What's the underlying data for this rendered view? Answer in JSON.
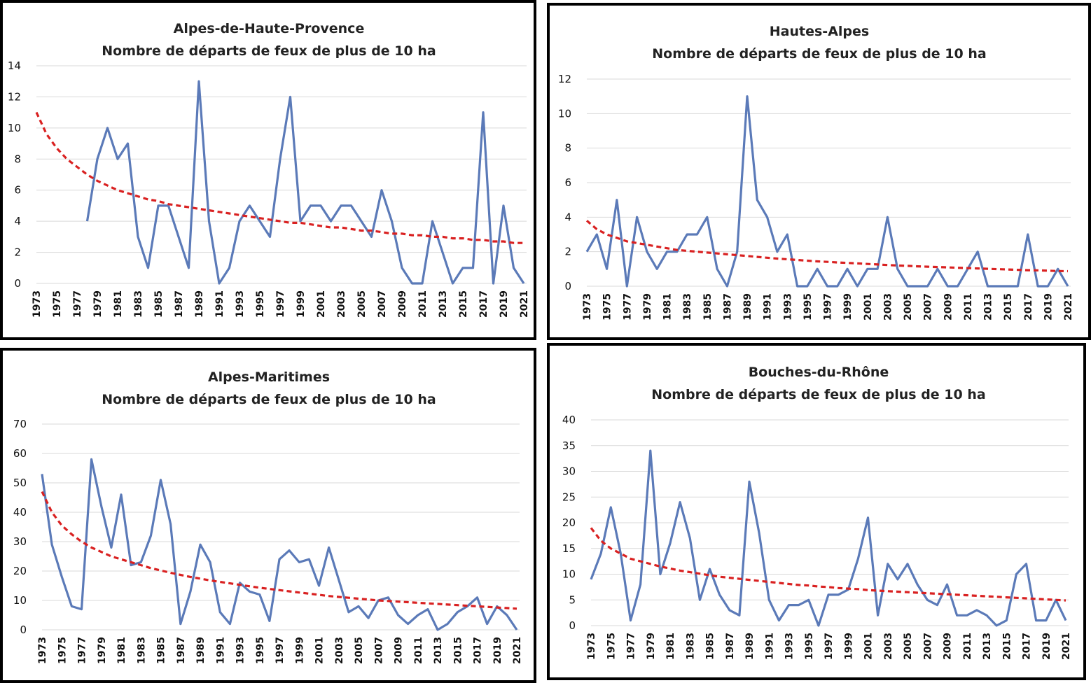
{
  "chart_data": [
    {
      "type": "line",
      "title": "Alpes-de-Haute-Provence",
      "subtitle": "Nombre de départs de feux de plus de 10 ha",
      "x": [
        1973,
        1974,
        1975,
        1976,
        1977,
        1978,
        1979,
        1980,
        1981,
        1982,
        1983,
        1984,
        1985,
        1986,
        1987,
        1988,
        1989,
        1990,
        1991,
        1992,
        1993,
        1994,
        1995,
        1996,
        1997,
        1998,
        1999,
        2000,
        2001,
        2002,
        2003,
        2004,
        2005,
        2006,
        2007,
        2008,
        2009,
        2010,
        2011,
        2012,
        2013,
        2014,
        2015,
        2016,
        2017,
        2018,
        2019,
        2020,
        2021
      ],
      "xticks": [
        "1973",
        "1975",
        "1977",
        "1979",
        "1981",
        "1983",
        "1985",
        "1987",
        "1989",
        "1991",
        "1993",
        "1995",
        "1997",
        "1999",
        "2001",
        "2003",
        "2005",
        "2007",
        "2009",
        "2011",
        "2013",
        "2015",
        "2017",
        "2019",
        "2021"
      ],
      "yticks": [
        "0",
        "2",
        "4",
        "6",
        "8",
        "10",
        "12",
        "14"
      ],
      "ylim": [
        0,
        14
      ],
      "grid": true,
      "series": [
        {
          "values": [
            null,
            null,
            null,
            null,
            null,
            4,
            8,
            10,
            8,
            9,
            3,
            1,
            5,
            5,
            3,
            1,
            13,
            4,
            0,
            1,
            4,
            5,
            4,
            3,
            8,
            12,
            4,
            5,
            5,
            4,
            5,
            5,
            4,
            3,
            6,
            4,
            1,
            0,
            0,
            4,
            2,
            0,
            1,
            1,
            11,
            0,
            5,
            1,
            0
          ],
          "style": "solid",
          "color": "#5b7ab8"
        },
        {
          "values": [
            11.0,
            9.6,
            8.7,
            8.0,
            7.5,
            7.0,
            6.6,
            6.3,
            6.0,
            5.8,
            5.6,
            5.4,
            5.3,
            5.1,
            5.0,
            4.9,
            4.8,
            4.7,
            4.6,
            4.5,
            4.4,
            4.3,
            4.2,
            4.1,
            4.0,
            3.9,
            3.9,
            3.8,
            3.7,
            3.6,
            3.6,
            3.5,
            3.4,
            3.4,
            3.3,
            3.2,
            3.2,
            3.1,
            3.1,
            3.0,
            3.0,
            2.9,
            2.9,
            2.8,
            2.8,
            2.7,
            2.7,
            2.6,
            2.6
          ],
          "style": "dashed",
          "color": "#d92121"
        }
      ]
    },
    {
      "type": "line",
      "title": "Hautes-Alpes",
      "subtitle": "Nombre de départs de feux de plus de 10 ha",
      "x": [
        1973,
        1974,
        1975,
        1976,
        1977,
        1978,
        1979,
        1980,
        1981,
        1982,
        1983,
        1984,
        1985,
        1986,
        1987,
        1988,
        1989,
        1990,
        1991,
        1992,
        1993,
        1994,
        1995,
        1996,
        1997,
        1998,
        1999,
        2000,
        2001,
        2002,
        2003,
        2004,
        2005,
        2006,
        2007,
        2008,
        2009,
        2010,
        2011,
        2012,
        2013,
        2014,
        2015,
        2016,
        2017,
        2018,
        2019,
        2020,
        2021
      ],
      "xticks": [
        "1973",
        "1975",
        "1977",
        "1979",
        "1981",
        "1983",
        "1985",
        "1987",
        "1989",
        "1991",
        "1993",
        "1995",
        "1997",
        "1999",
        "2001",
        "2003",
        "2005",
        "2007",
        "2009",
        "2011",
        "2013",
        "2015",
        "2017",
        "2019",
        "2021"
      ],
      "yticks": [
        "0",
        "2",
        "4",
        "6",
        "8",
        "10",
        "12"
      ],
      "ylim": [
        0,
        12
      ],
      "grid": true,
      "series": [
        {
          "values": [
            2,
            3,
            1,
            5,
            0,
            4,
            2,
            1,
            2,
            2,
            3,
            3,
            4,
            1,
            0,
            2,
            11,
            5,
            4,
            2,
            3,
            0,
            0,
            1,
            0,
            0,
            1,
            0,
            1,
            1,
            4,
            1,
            0,
            0,
            0,
            1,
            0,
            0,
            1,
            2,
            0,
            0,
            0,
            0,
            3,
            0,
            0,
            1,
            0
          ],
          "style": "solid",
          "color": "#5b7ab8"
        },
        {
          "values": [
            3.8,
            3.3,
            3.0,
            2.8,
            2.6,
            2.5,
            2.4,
            2.3,
            2.2,
            2.1,
            2.05,
            2.0,
            1.95,
            1.9,
            1.85,
            1.8,
            1.75,
            1.7,
            1.65,
            1.6,
            1.56,
            1.52,
            1.48,
            1.44,
            1.41,
            1.38,
            1.35,
            1.32,
            1.29,
            1.26,
            1.23,
            1.2,
            1.18,
            1.15,
            1.13,
            1.11,
            1.09,
            1.07,
            1.05,
            1.03,
            1.01,
            0.99,
            0.97,
            0.95,
            0.93,
            0.92,
            0.9,
            0.88,
            0.87
          ],
          "style": "dashed",
          "color": "#d92121"
        }
      ]
    },
    {
      "type": "line",
      "title": "Alpes-Maritimes",
      "subtitle": "Nombre de départs de feux de plus de 10 ha",
      "x": [
        1973,
        1974,
        1975,
        1976,
        1977,
        1978,
        1979,
        1980,
        1981,
        1982,
        1983,
        1984,
        1985,
        1986,
        1987,
        1988,
        1989,
        1990,
        1991,
        1992,
        1993,
        1994,
        1995,
        1996,
        1997,
        1998,
        1999,
        2000,
        2001,
        2002,
        2003,
        2004,
        2005,
        2006,
        2007,
        2008,
        2009,
        2010,
        2011,
        2012,
        2013,
        2014,
        2015,
        2016,
        2017,
        2018,
        2019,
        2020,
        2021
      ],
      "xticks": [
        "1973",
        "1975",
        "1977",
        "1979",
        "1981",
        "1983",
        "1985",
        "1987",
        "1989",
        "1991",
        "1993",
        "1995",
        "1997",
        "1999",
        "2001",
        "2003",
        "2005",
        "2007",
        "2009",
        "2011",
        "2013",
        "2015",
        "2017",
        "2019",
        "2021"
      ],
      "yticks": [
        "0",
        "10",
        "20",
        "30",
        "40",
        "50",
        "60",
        "70"
      ],
      "ylim": [
        0,
        70
      ],
      "grid": true,
      "series": [
        {
          "values": [
            53,
            29,
            18,
            8,
            7,
            58,
            42,
            28,
            46,
            22,
            23,
            32,
            51,
            36,
            2,
            13,
            29,
            23,
            6,
            2,
            16,
            13,
            12,
            3,
            24,
            27,
            23,
            24,
            15,
            28,
            17,
            6,
            8,
            4,
            10,
            11,
            5,
            2,
            5,
            7,
            0,
            2,
            6,
            8,
            11,
            2,
            8,
            5,
            0
          ],
          "style": "solid",
          "color": "#5b7ab8"
        },
        {
          "values": [
            47,
            40,
            35.5,
            32.5,
            30,
            28,
            26.5,
            25,
            24,
            23,
            22,
            21,
            20.2,
            19.4,
            18.7,
            18,
            17.4,
            16.8,
            16.3,
            15.8,
            15.3,
            14.8,
            14.3,
            13.9,
            13.5,
            13.1,
            12.7,
            12.3,
            11.9,
            11.5,
            11.2,
            10.9,
            10.6,
            10.3,
            10,
            9.8,
            9.6,
            9.4,
            9.2,
            9,
            8.8,
            8.6,
            8.4,
            8.2,
            8,
            7.8,
            7.6,
            7.4,
            7.2
          ],
          "style": "dashed",
          "color": "#d92121"
        }
      ]
    },
    {
      "type": "line",
      "title": "Bouches-du-Rhône",
      "subtitle": "Nombre de départs de feux de plus de 10 ha",
      "x": [
        1973,
        1974,
        1975,
        1976,
        1977,
        1978,
        1979,
        1980,
        1981,
        1982,
        1983,
        1984,
        1985,
        1986,
        1987,
        1988,
        1989,
        1990,
        1991,
        1992,
        1993,
        1994,
        1995,
        1996,
        1997,
        1998,
        1999,
        2000,
        2001,
        2002,
        2003,
        2004,
        2005,
        2006,
        2007,
        2008,
        2009,
        2010,
        2011,
        2012,
        2013,
        2014,
        2015,
        2016,
        2017,
        2018,
        2019,
        2020,
        2021
      ],
      "xticks": [
        "1973",
        "1975",
        "1977",
        "1979",
        "1981",
        "1983",
        "1985",
        "1987",
        "1989",
        "1991",
        "1993",
        "1995",
        "1997",
        "1999",
        "2001",
        "2003",
        "2005",
        "2007",
        "2009",
        "2011",
        "2013",
        "2015",
        "2017",
        "2019",
        "2021"
      ],
      "yticks": [
        "0",
        "5",
        "10",
        "15",
        "20",
        "25",
        "30",
        "35",
        "40"
      ],
      "ylim": [
        0,
        40
      ],
      "grid": true,
      "series": [
        {
          "values": [
            9,
            14,
            23,
            14,
            1,
            8,
            34,
            10,
            16,
            24,
            17,
            5,
            11,
            6,
            3,
            2,
            28,
            18,
            5,
            1,
            4,
            4,
            5,
            0,
            6,
            6,
            7,
            13,
            21,
            2,
            12,
            9,
            12,
            8,
            5,
            4,
            8,
            2,
            2,
            3,
            2,
            0,
            1,
            10,
            12,
            1,
            1,
            5,
            1
          ],
          "style": "solid",
          "color": "#5b7ab8"
        },
        {
          "values": [
            19,
            16.5,
            15,
            14,
            13,
            12.5,
            12,
            11.5,
            11.1,
            10.7,
            10.4,
            10.1,
            9.8,
            9.5,
            9.3,
            9.1,
            8.9,
            8.7,
            8.5,
            8.3,
            8.1,
            7.9,
            7.8,
            7.6,
            7.5,
            7.3,
            7.2,
            7.1,
            6.9,
            6.8,
            6.7,
            6.6,
            6.5,
            6.4,
            6.3,
            6.2,
            6.1,
            6,
            5.9,
            5.8,
            5.7,
            5.6,
            5.5,
            5.4,
            5.3,
            5.2,
            5.1,
            5,
            4.9
          ],
          "style": "dashed",
          "color": "#d92121"
        }
      ]
    }
  ]
}
